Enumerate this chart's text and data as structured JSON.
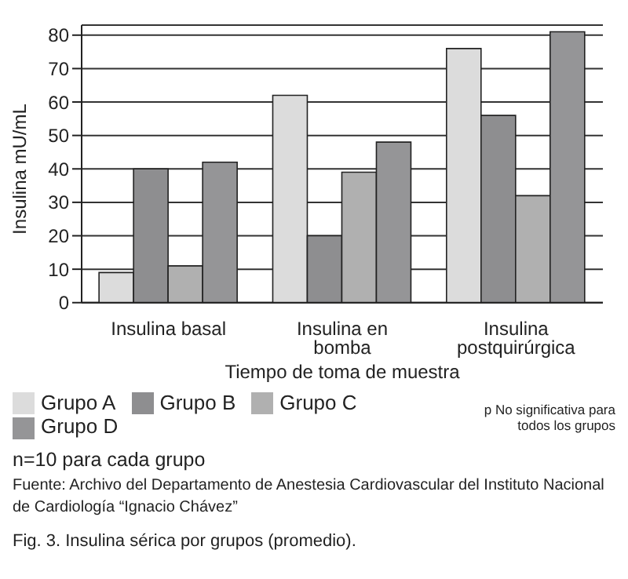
{
  "chart_data": {
    "type": "bar",
    "title": "Fig. 3. Insulina sérica por grupos (promedio).",
    "xlabel": "Tiempo de toma de muestra",
    "ylabel": "Insulina mU/mL",
    "categories": [
      "Insulina basal",
      "Insulina en bomba",
      "Insulina postquirúrgica"
    ],
    "series": [
      {
        "name": "Grupo A",
        "color": "#dcdcdc",
        "values": [
          9,
          62,
          76
        ]
      },
      {
        "name": "Grupo B",
        "color": "#8e8e90",
        "values": [
          40,
          20,
          56
        ]
      },
      {
        "name": "Grupo C",
        "color": "#b0b0b0",
        "values": [
          11,
          39,
          32
        ]
      },
      {
        "name": "Grupo D",
        "color": "#959597",
        "values": [
          42,
          48,
          81
        ]
      }
    ],
    "ylim": [
      0,
      83
    ],
    "yticks": [
      0,
      10,
      20,
      30,
      40,
      50,
      60,
      70,
      80
    ],
    "grid": "y",
    "legend": "bottom",
    "annotations": [
      "p No significativa para todos los grupos",
      "n=10 para cada grupo",
      "Fuente: Archivo del Departamento de Anestesia Cardiovascular del Instituto Nacional de Cardiología “Ignacio Chávez”"
    ]
  }
}
